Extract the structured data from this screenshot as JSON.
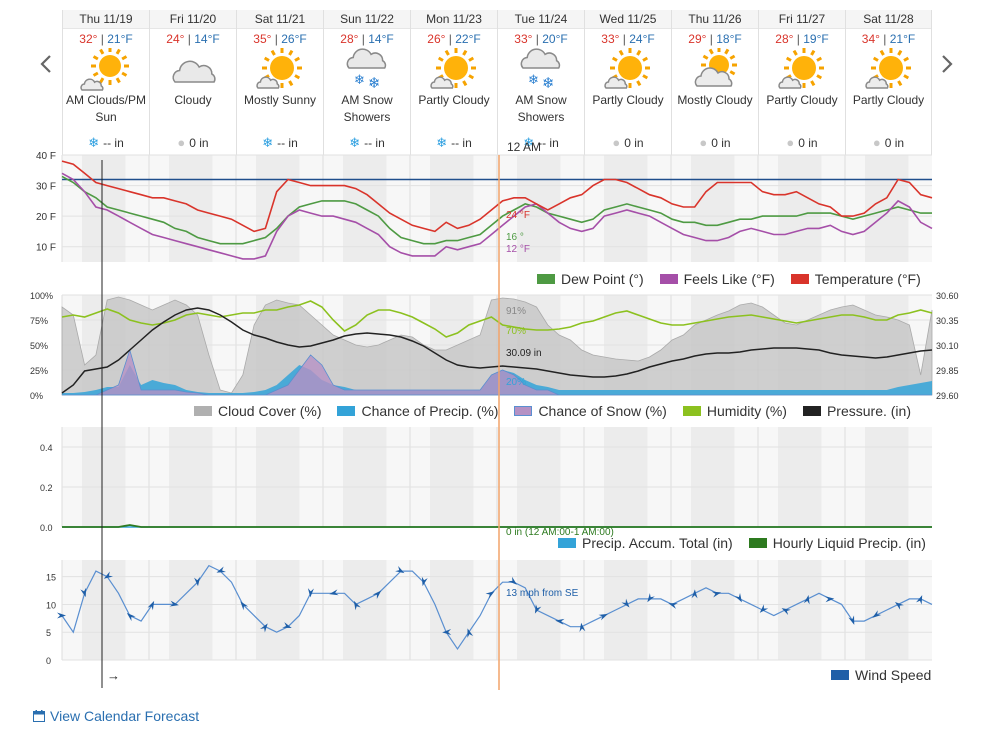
{
  "nav": {
    "prev_icon": "chevron-left-icon",
    "next_icon": "chevron-right-icon"
  },
  "days": [
    {
      "date": "Thu 11/19",
      "hi": "32°",
      "lo": "21°F",
      "icon": "partly-sunny-cloud",
      "cond_1": "AM Clouds/PM",
      "cond_2": "Sun",
      "precip_icon": "snow",
      "precip": "-- in"
    },
    {
      "date": "Fri 11/20",
      "hi": "24°",
      "lo": "14°F",
      "icon": "cloud",
      "cond_1": "Cloudy",
      "cond_2": "",
      "precip_icon": "drop",
      "precip": "0 in"
    },
    {
      "date": "Sat 11/21",
      "hi": "35°",
      "lo": "26°F",
      "icon": "sun-cloud",
      "cond_1": "Mostly Sunny",
      "cond_2": "",
      "precip_icon": "snow",
      "precip": "-- in"
    },
    {
      "date": "Sun 11/22",
      "hi": "28°",
      "lo": "14°F",
      "icon": "snow-cloud",
      "cond_1": "AM Snow",
      "cond_2": "Showers",
      "precip_icon": "snow",
      "precip": "-- in"
    },
    {
      "date": "Mon 11/23",
      "hi": "26°",
      "lo": "22°F",
      "icon": "sun-cloud",
      "cond_1": "Partly Cloudy",
      "cond_2": "",
      "precip_icon": "snow",
      "precip": "-- in"
    },
    {
      "date": "Tue 11/24",
      "hi": "33°",
      "lo": "20°F",
      "icon": "snow-cloud",
      "cond_1": "AM Snow",
      "cond_2": "Showers",
      "precip_icon": "snow",
      "precip": "-- in"
    },
    {
      "date": "Wed 11/25",
      "hi": "33°",
      "lo": "24°F",
      "icon": "sun-cloud",
      "cond_1": "Partly Cloudy",
      "cond_2": "",
      "precip_icon": "drop",
      "precip": "0 in"
    },
    {
      "date": "Thu 11/26",
      "hi": "29°",
      "lo": "18°F",
      "icon": "cloud-sun",
      "cond_1": "Mostly Cloudy",
      "cond_2": "",
      "precip_icon": "drop",
      "precip": "0 in"
    },
    {
      "date": "Fri 11/27",
      "hi": "28°",
      "lo": "19°F",
      "icon": "sun-cloud",
      "cond_1": "Partly Cloudy",
      "cond_2": "",
      "precip_icon": "drop",
      "precip": "0 in"
    },
    {
      "date": "Sat 11/28",
      "hi": "34°",
      "lo": "21°F",
      "icon": "sun-cloud",
      "cond_1": "Partly Cloudy",
      "cond_2": "",
      "precip_icon": "drop",
      "precip": "0 in"
    }
  ],
  "cursor_time": "12 AM",
  "colors": {
    "temperature": "#d9342b",
    "feels_like": "#a54fa8",
    "dew_point": "#4e9a43",
    "cloud": "#c8c8c8",
    "precip_chance": "#33a3d8",
    "snow_chance": "#b591c4",
    "humidity": "#8cc11f",
    "pressure": "#222222",
    "liquid": "#2d7a1f",
    "accum": "#33a3d8",
    "wind": "#1f5fa8",
    "cursor": "#f2a46a",
    "freezing": "#1f4e8c",
    "link": "#2a6fb0"
  },
  "chart_data": [
    {
      "type": "line",
      "name": "temperature-panel",
      "ylim": [
        5,
        40
      ],
      "yticks": [
        "40 F",
        "30 F",
        "20 F",
        "10 F"
      ],
      "freezing_line": 32,
      "cursor_labels": {
        "temperature": "24 °F",
        "dew_point": "16 °",
        "feels_like": "12 °F"
      },
      "series": [
        {
          "name": "Dew Point (°)",
          "key": "dew_point",
          "values": [
            33,
            31,
            28,
            26,
            23,
            22,
            21,
            20,
            19,
            18,
            16,
            15,
            13,
            12,
            11,
            11,
            11,
            12,
            13,
            16,
            20,
            23,
            24,
            25,
            25,
            25,
            24,
            22,
            20,
            16,
            13,
            12,
            11,
            11,
            12,
            12,
            13,
            14,
            17,
            20,
            22,
            24,
            23,
            21,
            20,
            19,
            18,
            19,
            22,
            23,
            24,
            23,
            22,
            21,
            19,
            18,
            18,
            17,
            17,
            18,
            19,
            19,
            20,
            20,
            20,
            20,
            21,
            21,
            21,
            20,
            19,
            20,
            21,
            22,
            23,
            22,
            21,
            21
          ]
        },
        {
          "name": "Feels Like (°F)",
          "key": "feels_like",
          "values": [
            34,
            32,
            28,
            23,
            22,
            20,
            18,
            16,
            14,
            13,
            12,
            11,
            10,
            9,
            8,
            7,
            6,
            6,
            7,
            15,
            20,
            22,
            21,
            20,
            20,
            19,
            18,
            16,
            14,
            10,
            8,
            7,
            7,
            7,
            10,
            9,
            10,
            11,
            14,
            17,
            20,
            23,
            24,
            21,
            18,
            16,
            15,
            16,
            20,
            21,
            22,
            21,
            20,
            18,
            16,
            14,
            13,
            12,
            12,
            13,
            15,
            16,
            15,
            14,
            14,
            15,
            16,
            16,
            17,
            15,
            14,
            15,
            18,
            21,
            25,
            23,
            18,
            16
          ]
        },
        {
          "name": "Temperature (°F)",
          "key": "temperature",
          "values": [
            38,
            37,
            34,
            31,
            30,
            29,
            28,
            27,
            26,
            26,
            25,
            24,
            22,
            21,
            20,
            19,
            17,
            15,
            16,
            28,
            32,
            31,
            30,
            30,
            30,
            30,
            29,
            27,
            24,
            21,
            19,
            17,
            16,
            15,
            18,
            16,
            17,
            19,
            22,
            25,
            26,
            26,
            24,
            22,
            24,
            26,
            27,
            30,
            32,
            32,
            31,
            29,
            27,
            26,
            24,
            23,
            23,
            28,
            31,
            31,
            31,
            31,
            28,
            27,
            27,
            28,
            26,
            24,
            23,
            20,
            20,
            21,
            24,
            26,
            32,
            31,
            27,
            26
          ]
        }
      ]
    },
    {
      "type": "area",
      "name": "cloud-humidity-panel",
      "ylim_left": [
        0,
        100
      ],
      "yticks_left": [
        "100%",
        "75%",
        "50%",
        "25%",
        "0%"
      ],
      "ylim_right": [
        29.6,
        30.6
      ],
      "yticks_right": [
        "30.60",
        "30.35",
        "30.10",
        "29.85",
        "29.60"
      ],
      "cursor_labels": {
        "cloud": "91%",
        "humidity": "70%",
        "pressure": "30.09 in",
        "precip_chance": "20%"
      },
      "series": [
        {
          "name": "Cloud Cover (%)",
          "key": "cloud",
          "values": [
            88,
            80,
            30,
            40,
            95,
            98,
            95,
            90,
            85,
            90,
            95,
            90,
            80,
            40,
            5,
            2,
            20,
            70,
            90,
            95,
            92,
            90,
            80,
            70,
            60,
            55,
            50,
            48,
            50,
            55,
            60,
            58,
            50,
            45,
            45,
            50,
            55,
            60,
            95,
            97,
            96,
            93,
            88,
            70,
            60,
            55,
            45,
            40,
            38,
            36,
            35,
            34,
            38,
            45,
            55,
            60,
            70,
            75,
            80,
            84,
            90,
            92,
            88,
            80,
            72,
            70,
            75,
            80,
            85,
            88,
            90,
            85,
            80,
            78,
            75,
            70,
            20,
            85
          ]
        },
        {
          "name": "Chance of Precip. (%)",
          "key": "precip_chance",
          "values": [
            2,
            2,
            3,
            5,
            8,
            8,
            30,
            10,
            15,
            12,
            10,
            5,
            3,
            2,
            2,
            2,
            2,
            3,
            5,
            10,
            20,
            30,
            25,
            15,
            10,
            8,
            5,
            5,
            5,
            5,
            5,
            5,
            5,
            5,
            5,
            5,
            5,
            5,
            20,
            25,
            22,
            15,
            10,
            8,
            5,
            5,
            5,
            5,
            5,
            5,
            5,
            5,
            5,
            5,
            5,
            5,
            5,
            5,
            5,
            5,
            5,
            5,
            5,
            5,
            5,
            5,
            5,
            5,
            5,
            5,
            5,
            5,
            5,
            5,
            8,
            10,
            12,
            14
          ]
        },
        {
          "name": "Chance of Snow (%)",
          "key": "snow_chance",
          "values": [
            0,
            0,
            0,
            0,
            5,
            10,
            45,
            5,
            5,
            5,
            5,
            3,
            2,
            0,
            0,
            0,
            0,
            0,
            0,
            5,
            10,
            25,
            40,
            30,
            10,
            5,
            5,
            5,
            5,
            5,
            5,
            5,
            5,
            5,
            5,
            5,
            5,
            5,
            20,
            25,
            20,
            10,
            5,
            5,
            0,
            0,
            0,
            0,
            0,
            0,
            0,
            0,
            0,
            0,
            0,
            0,
            0,
            0,
            0,
            0,
            0,
            0,
            0,
            0,
            0,
            0,
            0,
            0,
            0,
            0,
            0,
            0,
            0,
            0,
            0,
            0,
            0,
            0
          ]
        },
        {
          "name": "Humidity (%)",
          "key": "humidity",
          "values": [
            78,
            80,
            78,
            82,
            86,
            82,
            75,
            72,
            70,
            72,
            75,
            80,
            82,
            80,
            78,
            80,
            82,
            82,
            85,
            85,
            88,
            90,
            94,
            88,
            75,
            64,
            70,
            80,
            85,
            85,
            82,
            78,
            72,
            66,
            58,
            62,
            70,
            74,
            78,
            70,
            68,
            66,
            65,
            65,
            66,
            68,
            72,
            74,
            78,
            82,
            84,
            80,
            76,
            72,
            70,
            70,
            72,
            74,
            76,
            78,
            79,
            80,
            78,
            76,
            74,
            72,
            74,
            76,
            78,
            80,
            80,
            78,
            75,
            75,
            80,
            82,
            85,
            82
          ]
        },
        {
          "name": "Pressure. (in)",
          "key": "pressure",
          "values": [
            29.62,
            29.7,
            29.84,
            29.86,
            29.88,
            29.95,
            30.05,
            30.15,
            30.25,
            30.33,
            30.4,
            30.45,
            30.47,
            30.45,
            30.4,
            30.33,
            30.25,
            30.2,
            30.17,
            30.13,
            30.1,
            30.08,
            30.09,
            30.12,
            30.15,
            30.19,
            30.21,
            30.22,
            30.21,
            30.2,
            30.18,
            30.14,
            30.09,
            30.02,
            29.95,
            29.9,
            29.88,
            29.87,
            29.88,
            29.89,
            29.88,
            29.87,
            29.86,
            29.84,
            29.82,
            29.8,
            29.79,
            29.78,
            29.78,
            29.79,
            29.81,
            29.84,
            29.88,
            29.91,
            29.94,
            29.96,
            29.99,
            30.01,
            30.02,
            30.02,
            30.03,
            30.05,
            30.06,
            30.07,
            30.07,
            30.07,
            30.06,
            30.05,
            30.02,
            30.0,
            29.99,
            29.98,
            29.97,
            29.98,
            30.0,
            30.02,
            30.04,
            30.05
          ]
        }
      ]
    },
    {
      "type": "line",
      "name": "precip-panel",
      "ylim": [
        0,
        0.5
      ],
      "yticks": [
        "0.4",
        "0.2",
        "0.0"
      ],
      "cursor_labels": {
        "accum": "0 in (12 AM:00-1 AM:00)"
      },
      "series": [
        {
          "name": "Precip. Accum. Total (in)",
          "key": "accum",
          "values": [
            0,
            0,
            0,
            0,
            0,
            0,
            0,
            0,
            0,
            0,
            0,
            0,
            0,
            0,
            0,
            0,
            0,
            0,
            0,
            0,
            0,
            0,
            0,
            0,
            0,
            0,
            0,
            0,
            0,
            0,
            0,
            0,
            0,
            0,
            0,
            0,
            0,
            0,
            0,
            0,
            0,
            0,
            0,
            0,
            0,
            0,
            0,
            0,
            0,
            0,
            0,
            0,
            0,
            0,
            0,
            0,
            0,
            0,
            0,
            0,
            0,
            0,
            0,
            0,
            0,
            0,
            0,
            0,
            0,
            0,
            0,
            0,
            0,
            0,
            0,
            0,
            0,
            0
          ]
        },
        {
          "name": "Hourly Liquid Precip. (in)",
          "key": "liquid",
          "values": [
            0,
            0,
            0,
            0,
            0,
            0,
            0.01,
            0,
            0,
            0,
            0,
            0,
            0,
            0,
            0,
            0,
            0,
            0,
            0,
            0,
            0,
            0,
            0,
            0,
            0,
            0,
            0,
            0,
            0,
            0,
            0,
            0,
            0,
            0,
            0,
            0,
            0,
            0,
            0,
            0,
            0,
            0,
            0,
            0,
            0,
            0,
            0,
            0,
            0,
            0,
            0,
            0,
            0,
            0,
            0,
            0,
            0,
            0,
            0,
            0,
            0,
            0,
            0,
            0,
            0,
            0,
            0,
            0,
            0,
            0,
            0,
            0,
            0,
            0,
            0,
            0,
            0,
            0
          ]
        }
      ]
    },
    {
      "type": "line",
      "name": "wind-panel",
      "ylim": [
        0,
        18
      ],
      "yticks": [
        "15",
        "10",
        "5",
        "0"
      ],
      "cursor_labels": {
        "wind": "13 mph from SE"
      },
      "series": [
        {
          "name": "Wind Speed",
          "key": "wind",
          "values": [
            8,
            5,
            12,
            16,
            15,
            12,
            8,
            7,
            10,
            10,
            10,
            12,
            14,
            17,
            16,
            14,
            10,
            8,
            6,
            5,
            6,
            8,
            12,
            12,
            12,
            12,
            10,
            11,
            12,
            14,
            16,
            16,
            14,
            10,
            5,
            2,
            5,
            8,
            12,
            14,
            14,
            13,
            9,
            8,
            7,
            6,
            6,
            7,
            8,
            9,
            10,
            11,
            11,
            11,
            10,
            11,
            12,
            13,
            12,
            12,
            11,
            10,
            9,
            8,
            9,
            10,
            11,
            12,
            11,
            10,
            7,
            7,
            8,
            9,
            10,
            11,
            11,
            10
          ]
        }
      ]
    }
  ],
  "legend_temp": [
    "Dew Point (°)",
    "Feels Like (°F)",
    "Temperature (°F)"
  ],
  "legend_cloud": [
    "Cloud Cover (%)",
    "Chance of Precip. (%)",
    "Chance of Snow (%)",
    "Humidity (%)",
    "Pressure. (in)"
  ],
  "legend_precip": [
    "Precip. Accum. Total (in)",
    "Hourly Liquid Precip. (in)"
  ],
  "legend_wind": [
    "Wind Speed"
  ],
  "cursor_arrow": "→",
  "calendar_link": {
    "label": "View Calendar Forecast",
    "icon": "calendar-icon"
  }
}
